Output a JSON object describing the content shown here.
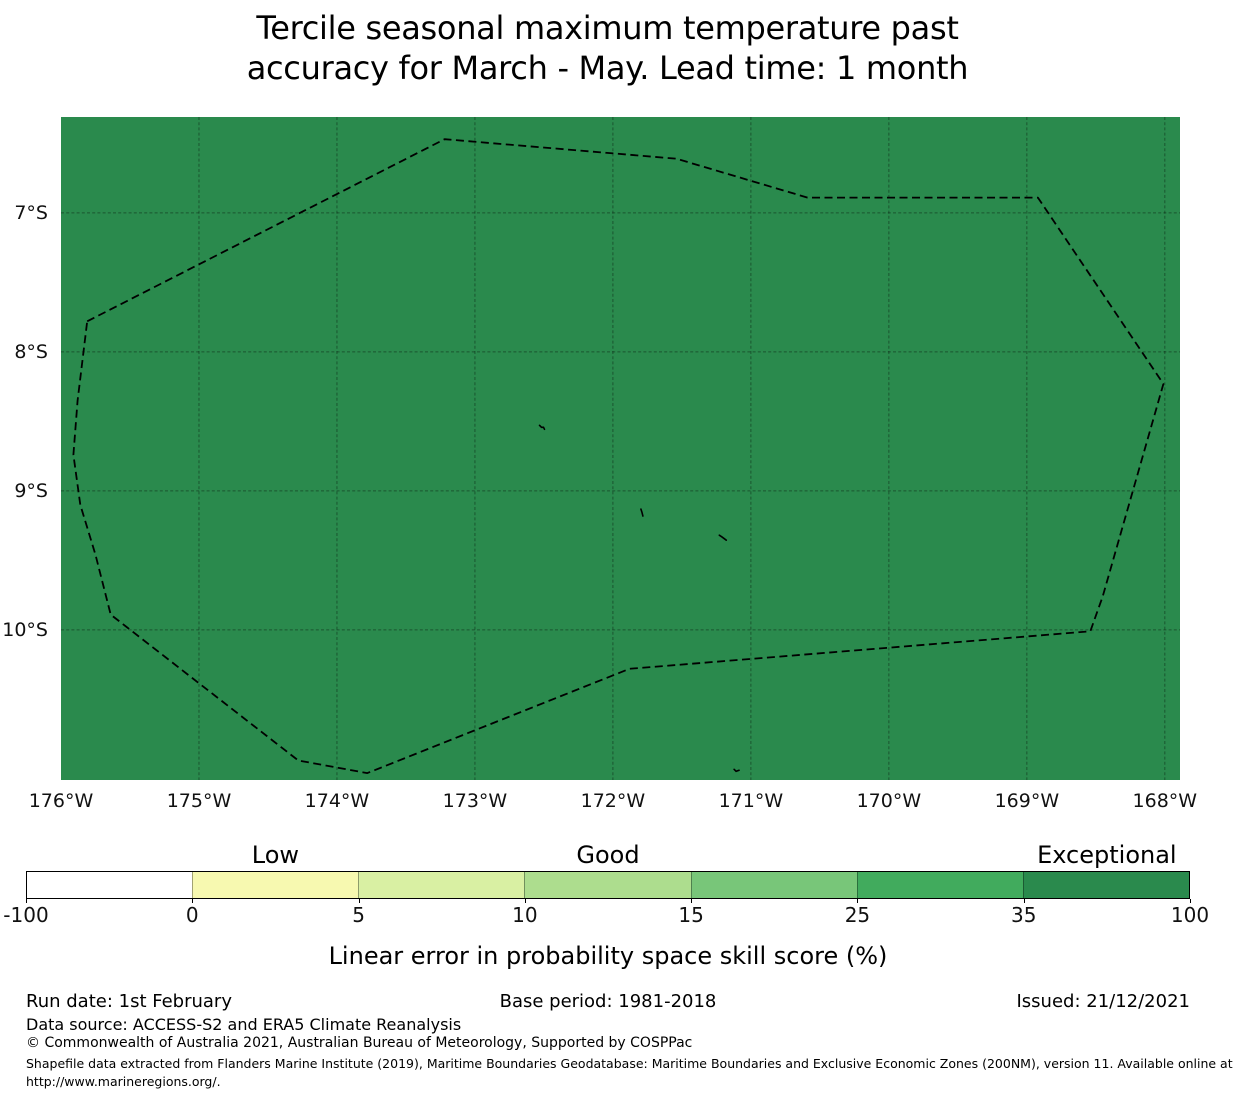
{
  "title": {
    "line1": "Tercile seasonal maximum temperature past",
    "line2": "accuracy for March - May. Lead time: 1 month"
  },
  "chart_data": {
    "type": "map",
    "title": "Tercile seasonal maximum temperature past accuracy for March - May. Lead time: 1 month",
    "extent": {
      "lon_west_deg_w": 176.0,
      "lon_east_deg_w": 167.89,
      "lat_north_deg_s": 6.31,
      "lat_south_deg_s": 11.08
    },
    "x_ticks": [
      {
        "label": "176°W",
        "lon_deg_w": 176
      },
      {
        "label": "175°W",
        "lon_deg_w": 175
      },
      {
        "label": "174°W",
        "lon_deg_w": 174
      },
      {
        "label": "173°W",
        "lon_deg_w": 173
      },
      {
        "label": "172°W",
        "lon_deg_w": 172
      },
      {
        "label": "171°W",
        "lon_deg_w": 171
      },
      {
        "label": "170°W",
        "lon_deg_w": 170
      },
      {
        "label": "169°W",
        "lon_deg_w": 169
      },
      {
        "label": "168°W",
        "lon_deg_w": 168
      }
    ],
    "y_ticks": [
      {
        "label": "7°S",
        "lat_deg_s": 7
      },
      {
        "label": "8°S",
        "lat_deg_s": 8
      },
      {
        "label": "9°S",
        "lat_deg_s": 9
      },
      {
        "label": "10°S",
        "lat_deg_s": 10
      }
    ],
    "map_fill": {
      "bin": "35-100",
      "label": "Exceptional",
      "color": "#2a8a4d"
    },
    "grid": {
      "on": true,
      "color": "rgba(0,0,0,0.38)",
      "dash": "3 2.2"
    },
    "eez_boundary_lonlat_deg_w_s": [
      [
        175.81,
        7.78
      ],
      [
        173.22,
        6.47
      ],
      [
        171.54,
        6.61
      ],
      [
        170.59,
        6.89
      ],
      [
        168.92,
        6.89
      ],
      [
        168.01,
        8.23
      ],
      [
        168.45,
        9.76
      ],
      [
        168.54,
        10.01
      ],
      [
        171.88,
        10.28
      ],
      [
        173.78,
        11.03
      ],
      [
        174.28,
        10.94
      ],
      [
        175.64,
        9.89
      ],
      [
        175.75,
        9.46
      ],
      [
        175.86,
        9.1
      ],
      [
        175.91,
        8.74
      ],
      [
        175.88,
        8.35
      ]
    ],
    "island_marks_lonlat_deg_w_s": [
      [
        172.51,
        8.55
      ],
      [
        171.79,
        9.16
      ],
      [
        171.2,
        9.34
      ],
      [
        171.1,
        11.01
      ]
    ],
    "colorbar": {
      "title": "Linear error in probability space skill score (%)",
      "tick_labels": [
        "-100",
        "0",
        "5",
        "10",
        "15",
        "25",
        "35",
        "100"
      ],
      "segment_colors": [
        "#ffffff",
        "#f7f9b0",
        "#d9f0a3",
        "#addd8e",
        "#78c679",
        "#41ab5d",
        "#2a8a4d"
      ],
      "category_labels": [
        {
          "text": "Low",
          "segment_index": 1
        },
        {
          "text": "Good",
          "segment_index": 3
        },
        {
          "text": "Exceptional",
          "segment_index": 6
        }
      ]
    }
  },
  "footer": {
    "run_date": "Run date: 1st February",
    "base_period": "Base period: 1981-2018",
    "issued": "Issued: 21/12/2021",
    "data_source": "Data source: ACCESS-S2 and ERA5 Climate Reanalysis",
    "copyright": "© Commonwealth of Australia 2021, Australian Bureau of Meteorology, Supported by COSPPac",
    "shapefile_note": "Shapefile data extracted from Flanders Marine Institute (2019), Maritime Boundaries Geodatabase: Maritime Boundaries and Exclusive Economic Zones (200NM), version 11. Available online at",
    "shapefile_url": "http://www.marineregions.org/."
  }
}
